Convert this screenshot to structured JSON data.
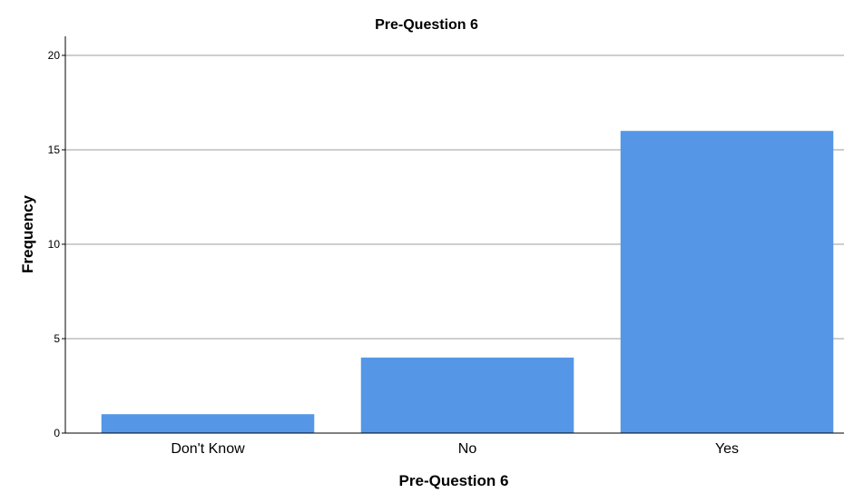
{
  "chart_data": {
    "type": "bar",
    "title": "Pre-Question 6",
    "xlabel": "Pre-Question 6",
    "ylabel": "Frequency",
    "categories": [
      "Don't Know",
      "No",
      "Yes"
    ],
    "values": [
      1,
      4,
      16
    ],
    "ylim": [
      0,
      20
    ],
    "yticks": [
      0,
      5,
      10,
      15,
      20
    ],
    "grid": true,
    "legend": "none",
    "bar_color": "#5596E6",
    "grid_color": "#BDBDBD",
    "axis_color": "#000000"
  }
}
